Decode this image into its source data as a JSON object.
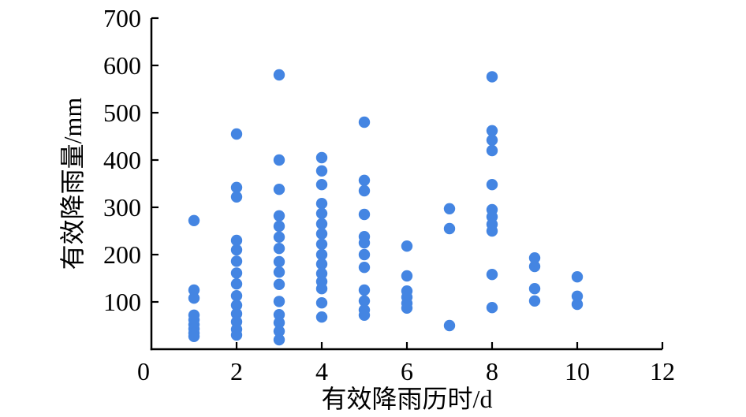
{
  "chart_data": {
    "type": "scatter",
    "title": "",
    "xlabel": "有效降雨历时/d",
    "ylabel": "有效降雨量/mm",
    "xlim": [
      0,
      12
    ],
    "ylim": [
      0,
      700
    ],
    "xticks": [
      0,
      2,
      4,
      6,
      8,
      10,
      12
    ],
    "yticks": [
      100,
      200,
      300,
      400,
      500,
      600,
      700
    ],
    "grid": false,
    "legend": "none",
    "marker_color": "#4485E2",
    "axis_color": "#000000",
    "points": [
      [
        1,
        272
      ],
      [
        1,
        125
      ],
      [
        1,
        108
      ],
      [
        1,
        72
      ],
      [
        1,
        62
      ],
      [
        1,
        52
      ],
      [
        1,
        43
      ],
      [
        1,
        34
      ],
      [
        1,
        27
      ],
      [
        2,
        455
      ],
      [
        2,
        342
      ],
      [
        2,
        322
      ],
      [
        2,
        230
      ],
      [
        2,
        210
      ],
      [
        2,
        186
      ],
      [
        2,
        161
      ],
      [
        2,
        138
      ],
      [
        2,
        113
      ],
      [
        2,
        93
      ],
      [
        2,
        75
      ],
      [
        2,
        58
      ],
      [
        2,
        42
      ],
      [
        2,
        30
      ],
      [
        3,
        580
      ],
      [
        3,
        400
      ],
      [
        3,
        338
      ],
      [
        3,
        282
      ],
      [
        3,
        260
      ],
      [
        3,
        237
      ],
      [
        3,
        213
      ],
      [
        3,
        185
      ],
      [
        3,
        163
      ],
      [
        3,
        137
      ],
      [
        3,
        101
      ],
      [
        3,
        73
      ],
      [
        3,
        56
      ],
      [
        3,
        38
      ],
      [
        3,
        20
      ],
      [
        4,
        405
      ],
      [
        4,
        377
      ],
      [
        4,
        348
      ],
      [
        4,
        308
      ],
      [
        4,
        287
      ],
      [
        4,
        265
      ],
      [
        4,
        244
      ],
      [
        4,
        222
      ],
      [
        4,
        200
      ],
      [
        4,
        180
      ],
      [
        4,
        160
      ],
      [
        4,
        143
      ],
      [
        4,
        128
      ],
      [
        4,
        98
      ],
      [
        4,
        68
      ],
      [
        5,
        480
      ],
      [
        5,
        357
      ],
      [
        5,
        335
      ],
      [
        5,
        285
      ],
      [
        5,
        238
      ],
      [
        5,
        225
      ],
      [
        5,
        200
      ],
      [
        5,
        173
      ],
      [
        5,
        125
      ],
      [
        5,
        102
      ],
      [
        5,
        83
      ],
      [
        5,
        72
      ],
      [
        6,
        218
      ],
      [
        6,
        155
      ],
      [
        6,
        123
      ],
      [
        6,
        110
      ],
      [
        6,
        97
      ],
      [
        6,
        87
      ],
      [
        7,
        297
      ],
      [
        7,
        255
      ],
      [
        7,
        50
      ],
      [
        8,
        576
      ],
      [
        8,
        462
      ],
      [
        8,
        442
      ],
      [
        8,
        420
      ],
      [
        8,
        348
      ],
      [
        8,
        295
      ],
      [
        8,
        280
      ],
      [
        8,
        264
      ],
      [
        8,
        250
      ],
      [
        8,
        158
      ],
      [
        8,
        88
      ],
      [
        9,
        193
      ],
      [
        9,
        175
      ],
      [
        9,
        128
      ],
      [
        9,
        102
      ],
      [
        10,
        153
      ],
      [
        10,
        112
      ],
      [
        10,
        95
      ]
    ]
  }
}
